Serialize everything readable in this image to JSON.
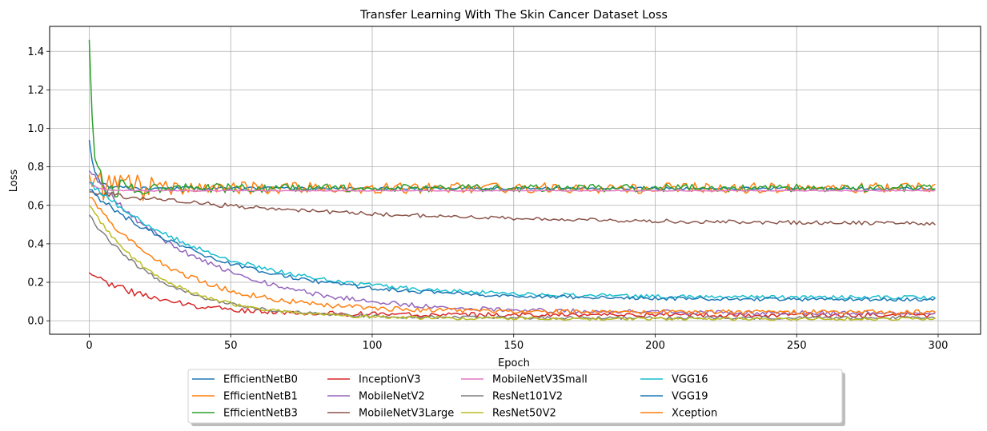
{
  "chart_data": {
    "type": "line",
    "title": "Transfer Learning With The Skin Cancer Dataset Loss",
    "xlabel": "Epoch",
    "ylabel": "Loss",
    "xlim": [
      -14,
      315
    ],
    "ylim": [
      -0.07,
      1.53
    ],
    "xticks": [
      0,
      50,
      100,
      150,
      200,
      250,
      300
    ],
    "yticks": [
      0.0,
      0.2,
      0.4,
      0.6,
      0.8,
      1.0,
      1.2,
      1.4
    ],
    "grid": true,
    "legend_placement": "bottom-center, outside plot, 5 columns",
    "epochs": 300,
    "series": [
      {
        "name": "EfficientNetB0",
        "color": "#1f77b4",
        "start": 0.94,
        "plateau": 0.688,
        "rate": 2.0,
        "noise": 0.007,
        "seed": 11
      },
      {
        "name": "EfficientNetB1",
        "color": "#ff7f0e",
        "start": 0.76,
        "plateau": 0.69,
        "rate": 2.5,
        "noise": 0.028,
        "seed": 12
      },
      {
        "name": "EfficientNetB3",
        "color": "#2ca02c",
        "start": 1.46,
        "plateau": 0.69,
        "rate": 1.5,
        "noise": 0.02,
        "seed": 13
      },
      {
        "name": "InceptionV3",
        "color": "#d62728",
        "start": 0.25,
        "plateau": 0.03,
        "rate": 25,
        "noise": 0.012,
        "seed": 14
      },
      {
        "name": "MobileNetV2",
        "color": "#9467bd",
        "start": 0.78,
        "plateau": 0.04,
        "rate": 40,
        "noise": 0.012,
        "seed": 15
      },
      {
        "name": "MobileNetV3Large",
        "color": "#8c564b",
        "start": 0.67,
        "plateau": 0.5,
        "rate": 90,
        "noise": 0.01,
        "seed": 16
      },
      {
        "name": "MobileNetV3Small",
        "color": "#e377c2",
        "start": 0.72,
        "plateau": 0.676,
        "rate": 3,
        "noise": 0.002,
        "seed": 17
      },
      {
        "name": "ResNet101V2",
        "color": "#7f7f7f",
        "start": 0.55,
        "plateau": 0.015,
        "rate": 25,
        "noise": 0.008,
        "seed": 18
      },
      {
        "name": "ResNet50V2",
        "color": "#bcbd22",
        "start": 0.6,
        "plateau": 0.01,
        "rate": 25,
        "noise": 0.008,
        "seed": 19
      },
      {
        "name": "VGG16",
        "color": "#17becf",
        "start": 0.72,
        "plateau": 0.12,
        "rate": 45,
        "noise": 0.01,
        "seed": 20
      },
      {
        "name": "VGG19",
        "color": "#1f77b4",
        "start": 0.68,
        "plateau": 0.11,
        "rate": 45,
        "noise": 0.01,
        "seed": 21
      },
      {
        "name": "Xception",
        "color": "#ff7f0e",
        "start": 0.64,
        "plateau": 0.045,
        "rate": 30,
        "noise": 0.012,
        "seed": 22
      }
    ]
  }
}
